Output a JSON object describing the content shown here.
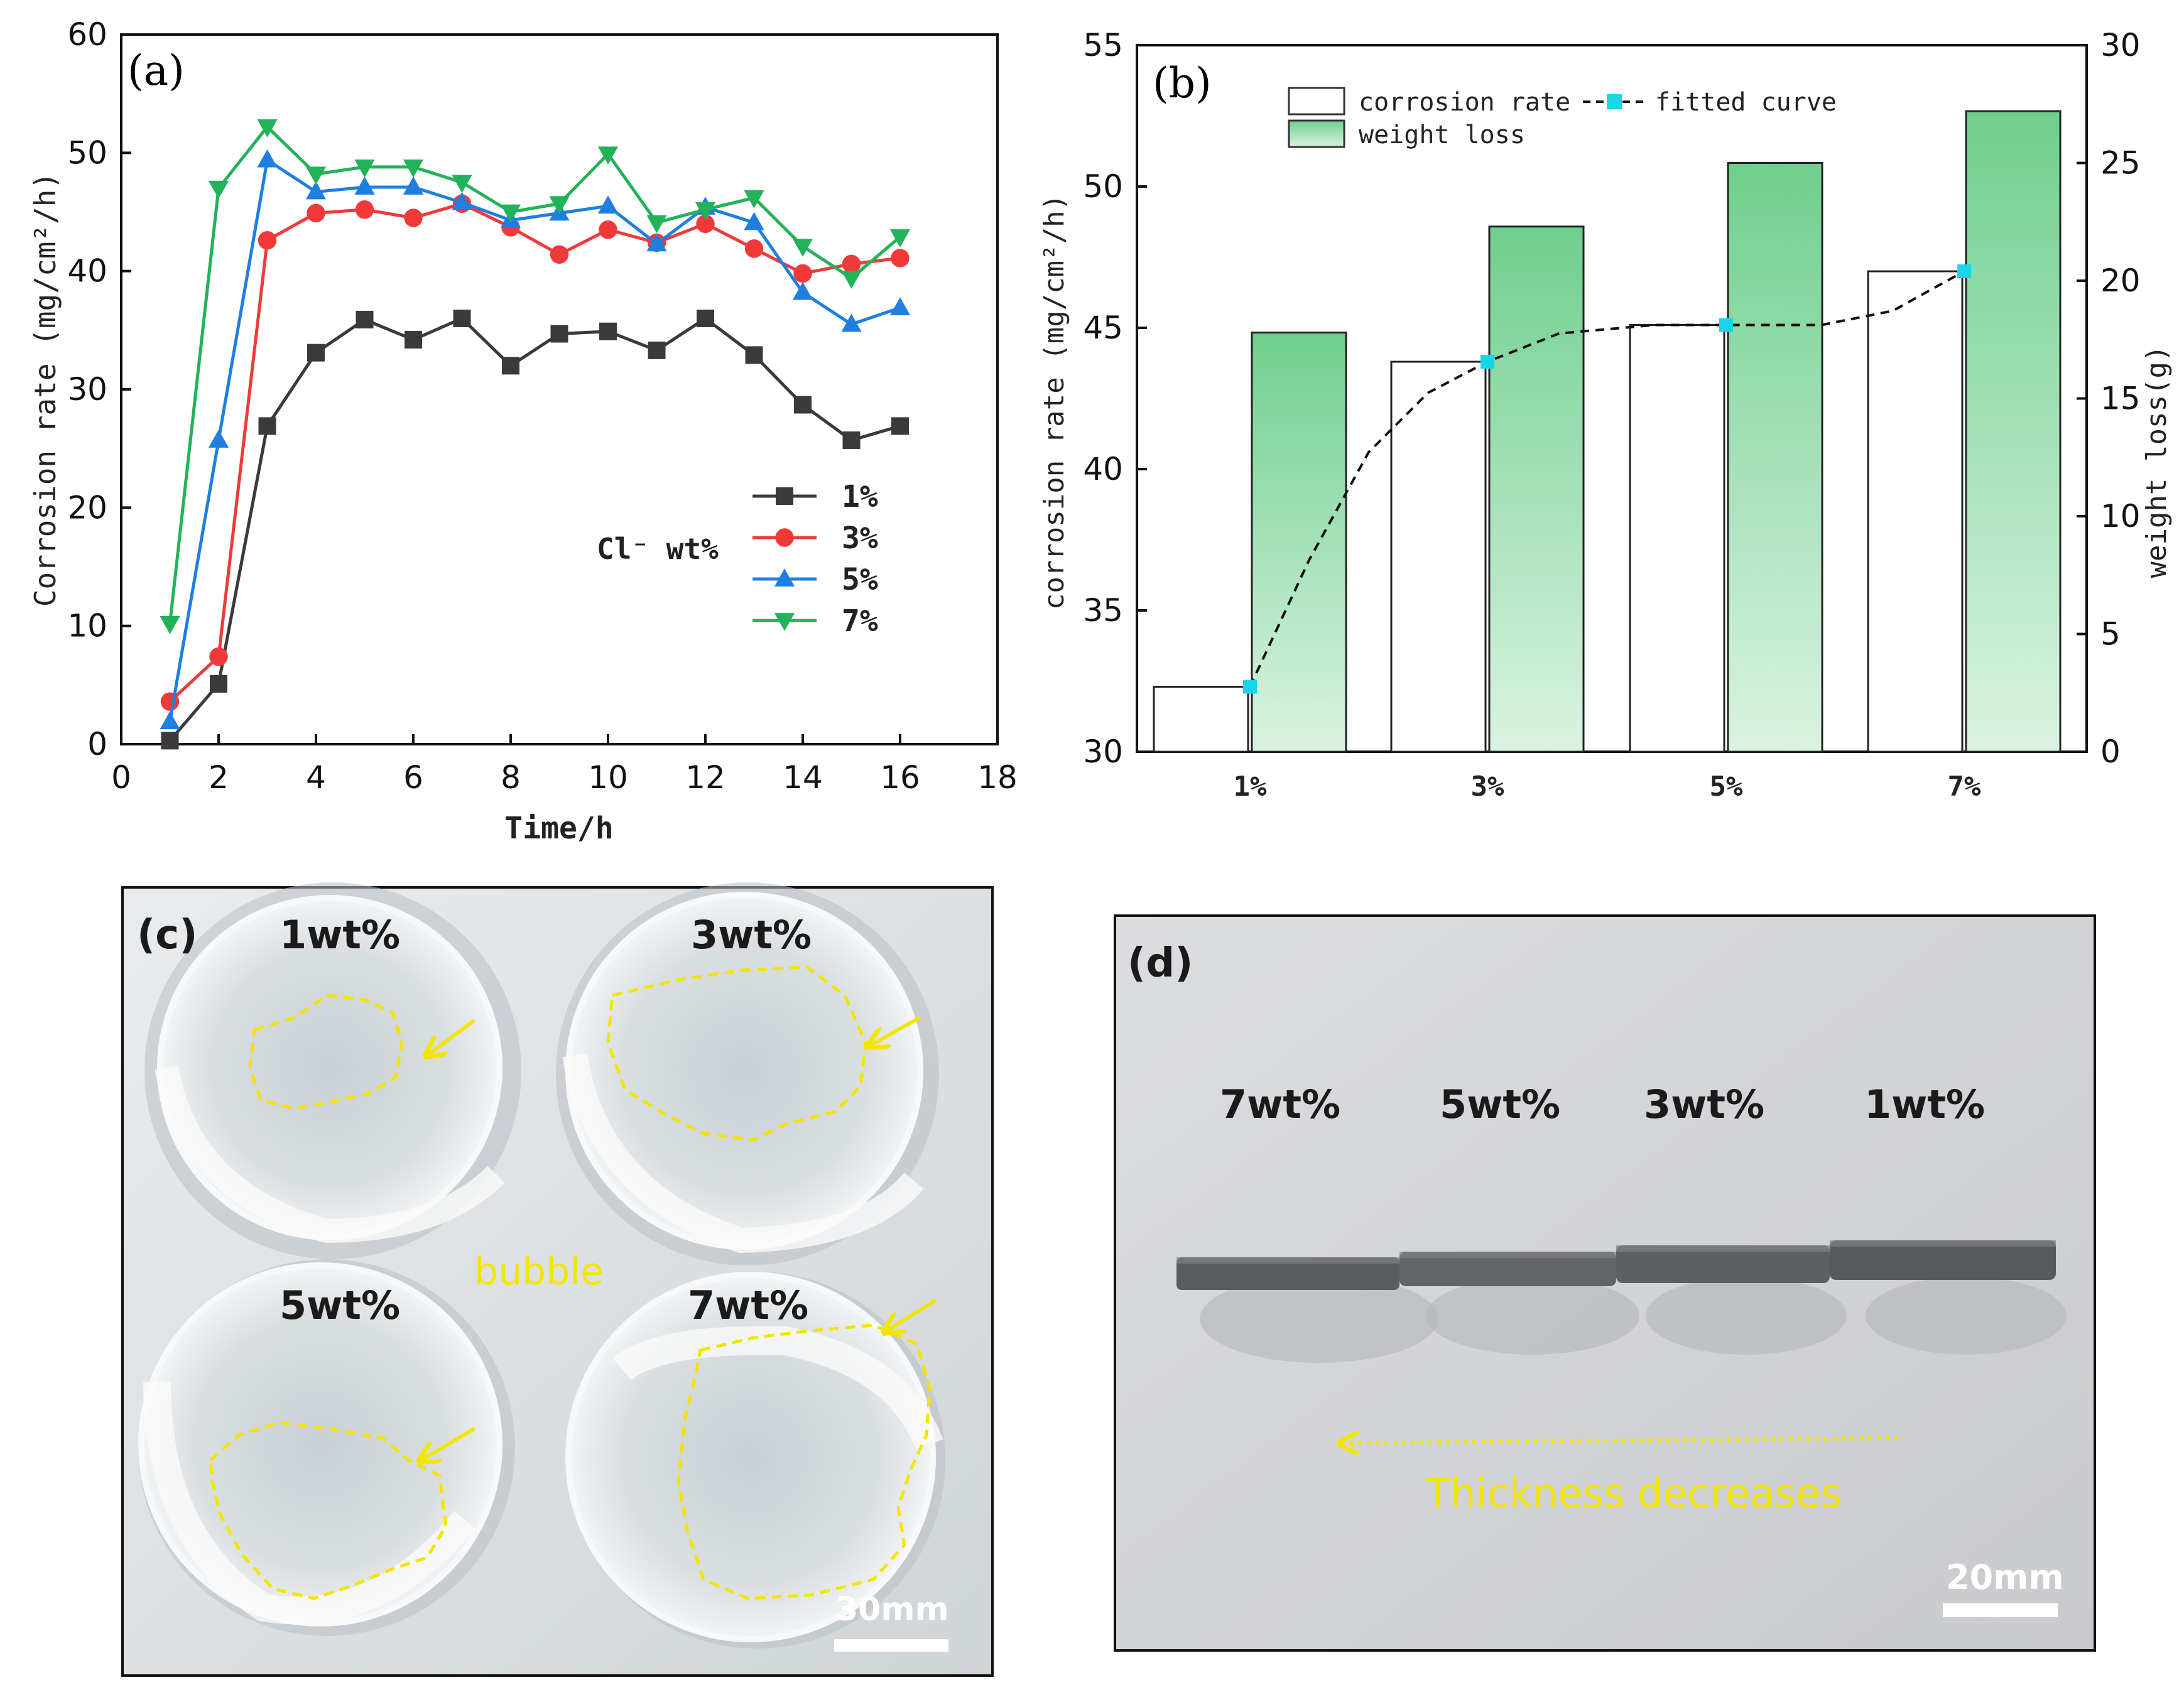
{
  "colors": {
    "s1": "#3a3a3a",
    "s3": "#f03a3a",
    "s5": "#1e7fe0",
    "s7": "#21b25a",
    "bar_green_top": "#6fcf8d",
    "bar_green_bottom": "#daf3e2",
    "fitted": "#111111",
    "marker_cyan": "#19d5e8",
    "annot_yellow": "#f2e600"
  },
  "chart_data": [
    {
      "type": "line",
      "panel_label": "(a)",
      "xlabel": "Time/h",
      "ylabel": "Corrosion rate (mg/cm²/h)",
      "xlim": [
        0,
        18
      ],
      "ylim": [
        0,
        60
      ],
      "xticks": [
        0,
        2,
        4,
        6,
        8,
        10,
        12,
        14,
        16,
        18
      ],
      "yticks": [
        0,
        10,
        20,
        30,
        40,
        50,
        60
      ],
      "legend_title": "Cl⁻ wt%",
      "x": [
        1,
        2,
        3,
        4,
        5,
        6,
        7,
        8,
        9,
        10,
        11,
        12,
        13,
        14,
        15,
        16
      ],
      "series": [
        {
          "name": "1%",
          "marker": "square",
          "values": [
            0.3,
            5.1,
            26.9,
            33.1,
            35.9,
            34.2,
            36.0,
            32.0,
            34.7,
            34.9,
            33.3,
            36.0,
            32.9,
            28.7,
            25.7,
            26.9
          ]
        },
        {
          "name": "3%",
          "marker": "circle",
          "values": [
            3.6,
            7.4,
            42.6,
            44.9,
            45.2,
            44.5,
            45.7,
            43.7,
            41.4,
            43.5,
            42.4,
            44.0,
            41.9,
            39.8,
            40.6,
            41.1
          ]
        },
        {
          "name": "5%",
          "marker": "triangle-up",
          "values": [
            1.9,
            25.7,
            49.4,
            46.7,
            47.1,
            47.1,
            45.8,
            44.3,
            44.9,
            45.5,
            42.3,
            45.4,
            44.1,
            38.2,
            35.5,
            36.9
          ]
        },
        {
          "name": "7%",
          "marker": "triangle-down",
          "values": [
            10.2,
            47.0,
            52.2,
            48.2,
            48.8,
            48.8,
            47.5,
            45.0,
            45.7,
            49.9,
            44.1,
            45.2,
            46.2,
            42.1,
            39.4,
            42.9
          ]
        }
      ]
    },
    {
      "type": "bar",
      "panel_label": "(b)",
      "categories": [
        "1%",
        "3%",
        "5%",
        "7%"
      ],
      "ylabel": "corrosion rate (mg/cm²/h)",
      "y2label": "weight loss(g)",
      "ylim": [
        30,
        55
      ],
      "y2lim": [
        0,
        30
      ],
      "yticks": [
        30,
        35,
        40,
        45,
        50,
        55
      ],
      "y2ticks": [
        0,
        5,
        10,
        15,
        20,
        25,
        30
      ],
      "series": [
        {
          "name": "corrosion rate",
          "axis": "left",
          "values": [
            32.3,
            43.8,
            45.1,
            47.0
          ]
        },
        {
          "name": "weight loss",
          "axis": "right",
          "values": [
            17.8,
            22.3,
            25.0,
            27.2
          ]
        },
        {
          "name": "fitted curve",
          "axis": "left",
          "points": [
            32.3,
            43.8,
            45.1,
            47.0
          ],
          "curve": [
            [
              0,
              32.3
            ],
            [
              0.25,
              36.8
            ],
            [
              0.5,
              40.6
            ],
            [
              0.75,
              42.7
            ],
            [
              1,
              43.8
            ],
            [
              1.3,
              44.8
            ],
            [
              1.7,
              45.1
            ],
            [
              2,
              45.1
            ],
            [
              2.4,
              45.1
            ],
            [
              2.7,
              45.6
            ],
            [
              3,
              47.0
            ]
          ]
        }
      ]
    }
  ],
  "panel_c": {
    "label": "(c)",
    "samples": [
      "1wt%",
      "3wt%",
      "5wt%",
      "7wt%"
    ],
    "annotation": "bubble",
    "scale": "30mm"
  },
  "panel_d": {
    "label": "(d)",
    "samples": [
      "7wt%",
      "5wt%",
      "3wt%",
      "1wt%"
    ],
    "annotation": "Thickness decreases",
    "scale": "20mm"
  }
}
